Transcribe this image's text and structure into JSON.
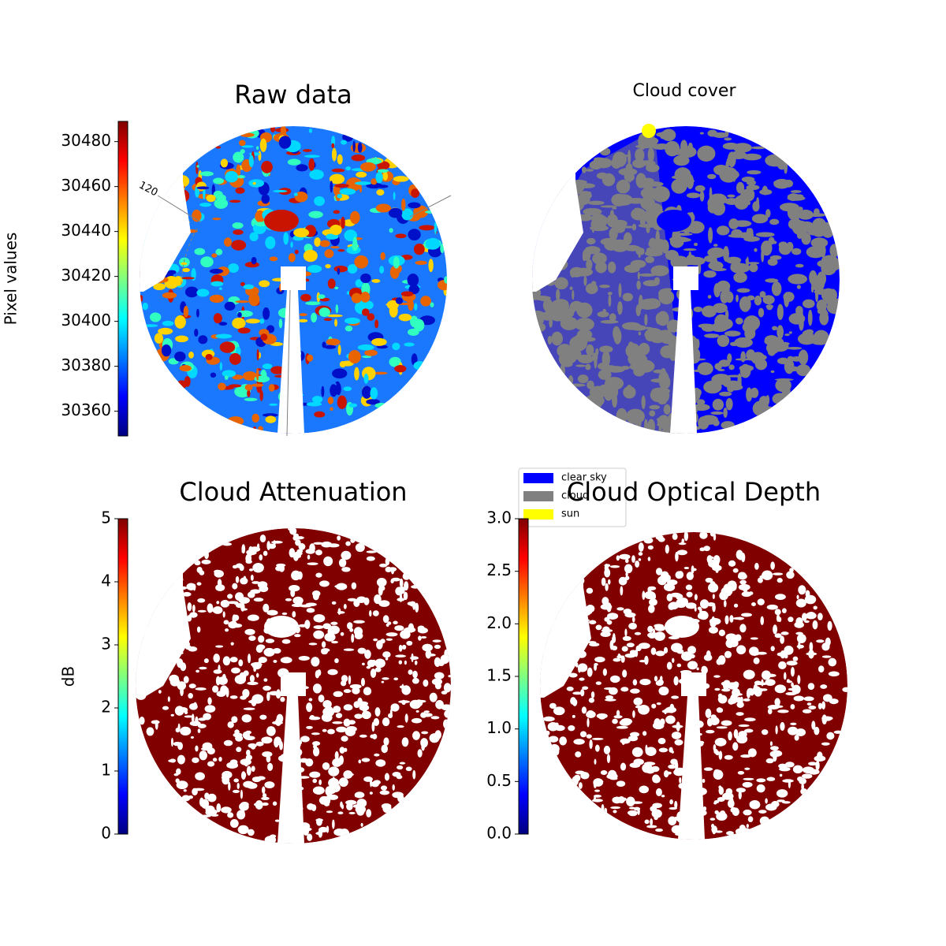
{
  "chart_data": [
    {
      "type": "image",
      "title": "Raw data",
      "colormap": "jet",
      "annotation": "120",
      "colorbar": {
        "label": "Pixel values",
        "lim": [
          30349,
          30489
        ],
        "ticks": [
          30360,
          30380,
          30400,
          30420,
          30440,
          30460,
          30480
        ]
      }
    },
    {
      "type": "image",
      "title": "Cloud cover",
      "legend": "lower left",
      "series": [
        {
          "name": "clear sky",
          "color": "#0000ff"
        },
        {
          "name": "cloud",
          "color": "#808080"
        },
        {
          "name": "sun",
          "color": "#ffff00"
        }
      ]
    },
    {
      "type": "image",
      "title": "Cloud Attenuation",
      "colormap": "jet",
      "colorbar": {
        "label": "dB",
        "lim": [
          0,
          5
        ],
        "ticks": [
          0,
          1,
          2,
          3,
          4,
          5
        ]
      }
    },
    {
      "type": "image",
      "title": "Cloud Optical Depth",
      "colormap": "jet",
      "colorbar": {
        "lim": [
          0,
          3
        ],
        "ticks": [
          {
            "value": 0,
            "label": "0.0"
          },
          {
            "value": 0.5,
            "label": "0.5"
          },
          {
            "value": 1,
            "label": "1.0"
          },
          {
            "value": 1.5,
            "label": "1.5"
          },
          {
            "value": 2,
            "label": "2.0"
          },
          {
            "value": 2.5,
            "label": "2.5"
          },
          {
            "value": 3,
            "label": "3.0"
          }
        ]
      }
    }
  ]
}
